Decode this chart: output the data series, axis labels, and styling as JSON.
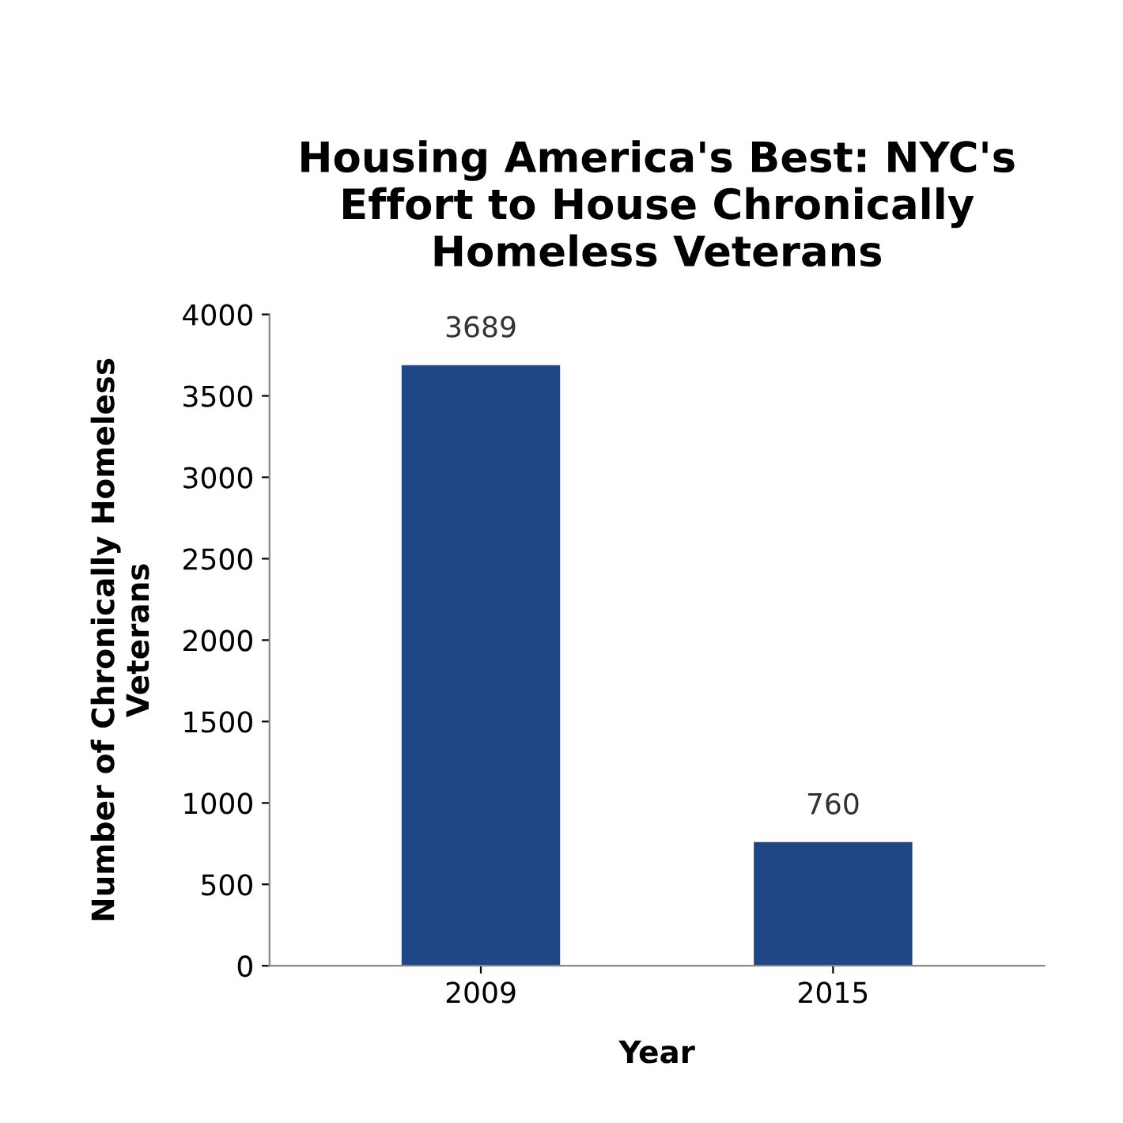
{
  "chart_data": {
    "type": "bar",
    "title": "Housing America's Best: NYC's\nEffort to House Chronically\nHomeless Veterans",
    "xlabel": "Year",
    "ylabel": "Number of Chronically Homeless\nVeterans",
    "categories": [
      "2009",
      "2015"
    ],
    "values": [
      3689,
      760
    ],
    "color": "#1f4788",
    "ylim": [
      0,
      4000
    ],
    "yticks": [
      0,
      500,
      1000,
      1500,
      2000,
      2500,
      3000,
      3500,
      4000
    ],
    "grid": false,
    "data_labels": true
  }
}
